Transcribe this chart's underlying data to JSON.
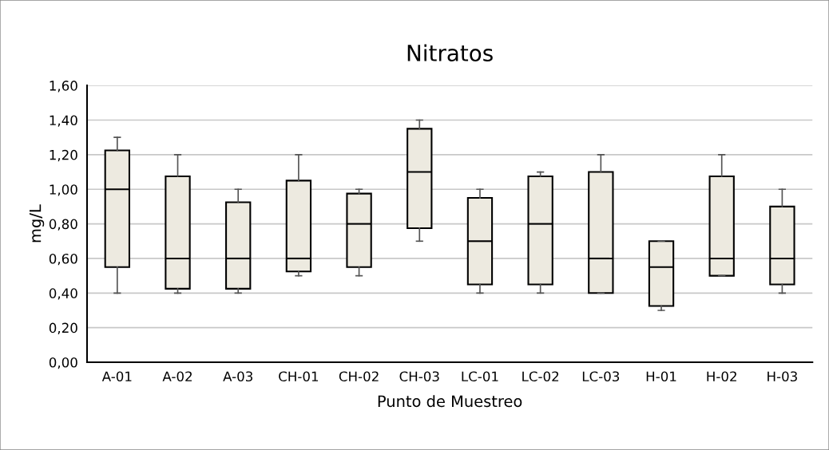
{
  "chart_data": {
    "type": "box",
    "title": "Nitratos",
    "xlabel": "Punto de Muestreo",
    "ylabel": "mg/L",
    "categories": [
      "A-01",
      "A-02",
      "A-03",
      "CH-01",
      "CH-02",
      "CH-03",
      "LC-01",
      "LC-02",
      "LC-03",
      "H-01",
      "H-02",
      "H-03"
    ],
    "boxes": [
      {
        "low": 0.4,
        "q1": 0.55,
        "median": 1.0,
        "q3": 1.225,
        "high": 1.3
      },
      {
        "low": 0.4,
        "q1": 0.425,
        "median": 0.6,
        "q3": 1.075,
        "high": 1.2
      },
      {
        "low": 0.4,
        "q1": 0.425,
        "median": 0.6,
        "q3": 0.925,
        "high": 1.0
      },
      {
        "low": 0.5,
        "q1": 0.525,
        "median": 0.6,
        "q3": 1.05,
        "high": 1.2
      },
      {
        "low": 0.5,
        "q1": 0.55,
        "median": 0.8,
        "q3": 0.975,
        "high": 1.0
      },
      {
        "low": 0.7,
        "q1": 0.775,
        "median": 1.1,
        "q3": 1.35,
        "high": 1.4
      },
      {
        "low": 0.4,
        "q1": 0.45,
        "median": 0.7,
        "q3": 0.95,
        "high": 1.0
      },
      {
        "low": 0.4,
        "q1": 0.45,
        "median": 0.8,
        "q3": 1.075,
        "high": 1.1
      },
      {
        "low": 0.4,
        "q1": 0.4,
        "median": 0.6,
        "q3": 1.1,
        "high": 1.2
      },
      {
        "low": 0.3,
        "q1": 0.325,
        "median": 0.55,
        "q3": 0.7,
        "high": 0.7
      },
      {
        "low": 0.5,
        "q1": 0.5,
        "median": 0.6,
        "q3": 1.075,
        "high": 1.2
      },
      {
        "low": 0.4,
        "q1": 0.45,
        "median": 0.6,
        "q3": 0.9,
        "high": 1.0
      }
    ],
    "color": "#edeae0",
    "ylim": [
      0,
      1.6
    ],
    "yticks": [
      {
        "value": 0,
        "label": "0,00"
      },
      {
        "value": 0.2,
        "label": "0,20"
      },
      {
        "value": 0.4,
        "label": "0,40"
      },
      {
        "value": 0.6,
        "label": "0,60"
      },
      {
        "value": 0.8,
        "label": "0,80"
      },
      {
        "value": 1.0,
        "label": "1,00"
      },
      {
        "value": 1.2,
        "label": "1,20"
      },
      {
        "value": 1.4,
        "label": "1,40"
      },
      {
        "value": 1.6,
        "label": "1,60"
      }
    ],
    "grid": "y",
    "legend": false
  }
}
